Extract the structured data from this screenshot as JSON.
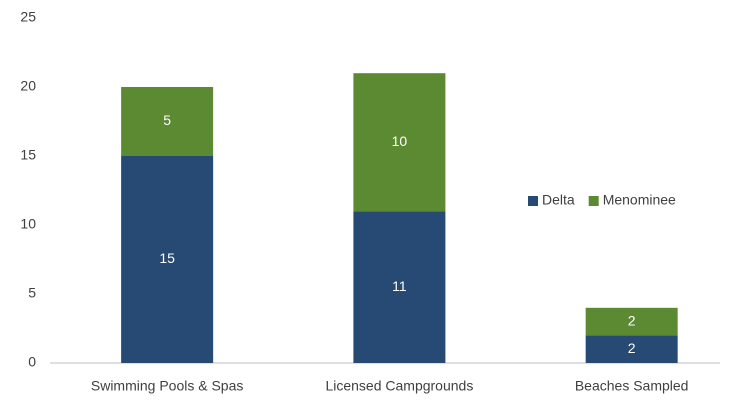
{
  "chart_data": {
    "type": "stacked_bar",
    "categories": [
      "Swimming Pools & Spas",
      "Licensed Campgrounds",
      "Beaches Sampled"
    ],
    "series": [
      {
        "name": "Delta",
        "color": "#264a73",
        "values": [
          15,
          11,
          2
        ]
      },
      {
        "name": "Menominee",
        "color": "#5b8a33",
        "values": [
          5,
          10,
          2
        ]
      }
    ],
    "ylim": [
      0,
      25
    ],
    "yticks": [
      0,
      5,
      10,
      15,
      20,
      25
    ],
    "grid": false,
    "legend": "right"
  }
}
